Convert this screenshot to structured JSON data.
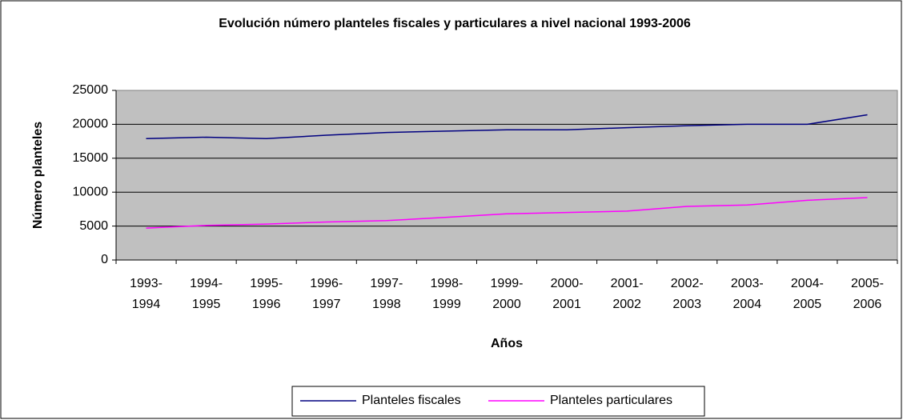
{
  "chart_data": {
    "type": "line",
    "title": "Evolución número planteles fiscales y particulares a nivel nacional 1993-2006",
    "x_label": "Años",
    "y_label": "Número planteles",
    "categories": [
      "1993-1994",
      "1994-1995",
      "1995-1996",
      "1996-1997",
      "1997-1998",
      "1998-1999",
      "1999-2000",
      "2000-2001",
      "2001-2002",
      "2002-2003",
      "2003-2004",
      "2004-2005",
      "2005-2006"
    ],
    "series": [
      {
        "name": "Planteles fiscales",
        "color": "#000080",
        "values": [
          17900,
          18100,
          17900,
          18400,
          18800,
          19000,
          19200,
          19200,
          19500,
          19800,
          20000,
          20000,
          21400
        ]
      },
      {
        "name": "Planteles particulares",
        "color": "#ff00ff",
        "values": [
          4700,
          5100,
          5300,
          5600,
          5800,
          6300,
          6800,
          7000,
          7200,
          7900,
          8100,
          8800,
          9200
        ]
      }
    ],
    "ylim": [
      0,
      25000
    ],
    "yticks": [
      0,
      5000,
      10000,
      15000,
      20000,
      25000
    ],
    "grid": true,
    "legend": "bottom"
  }
}
